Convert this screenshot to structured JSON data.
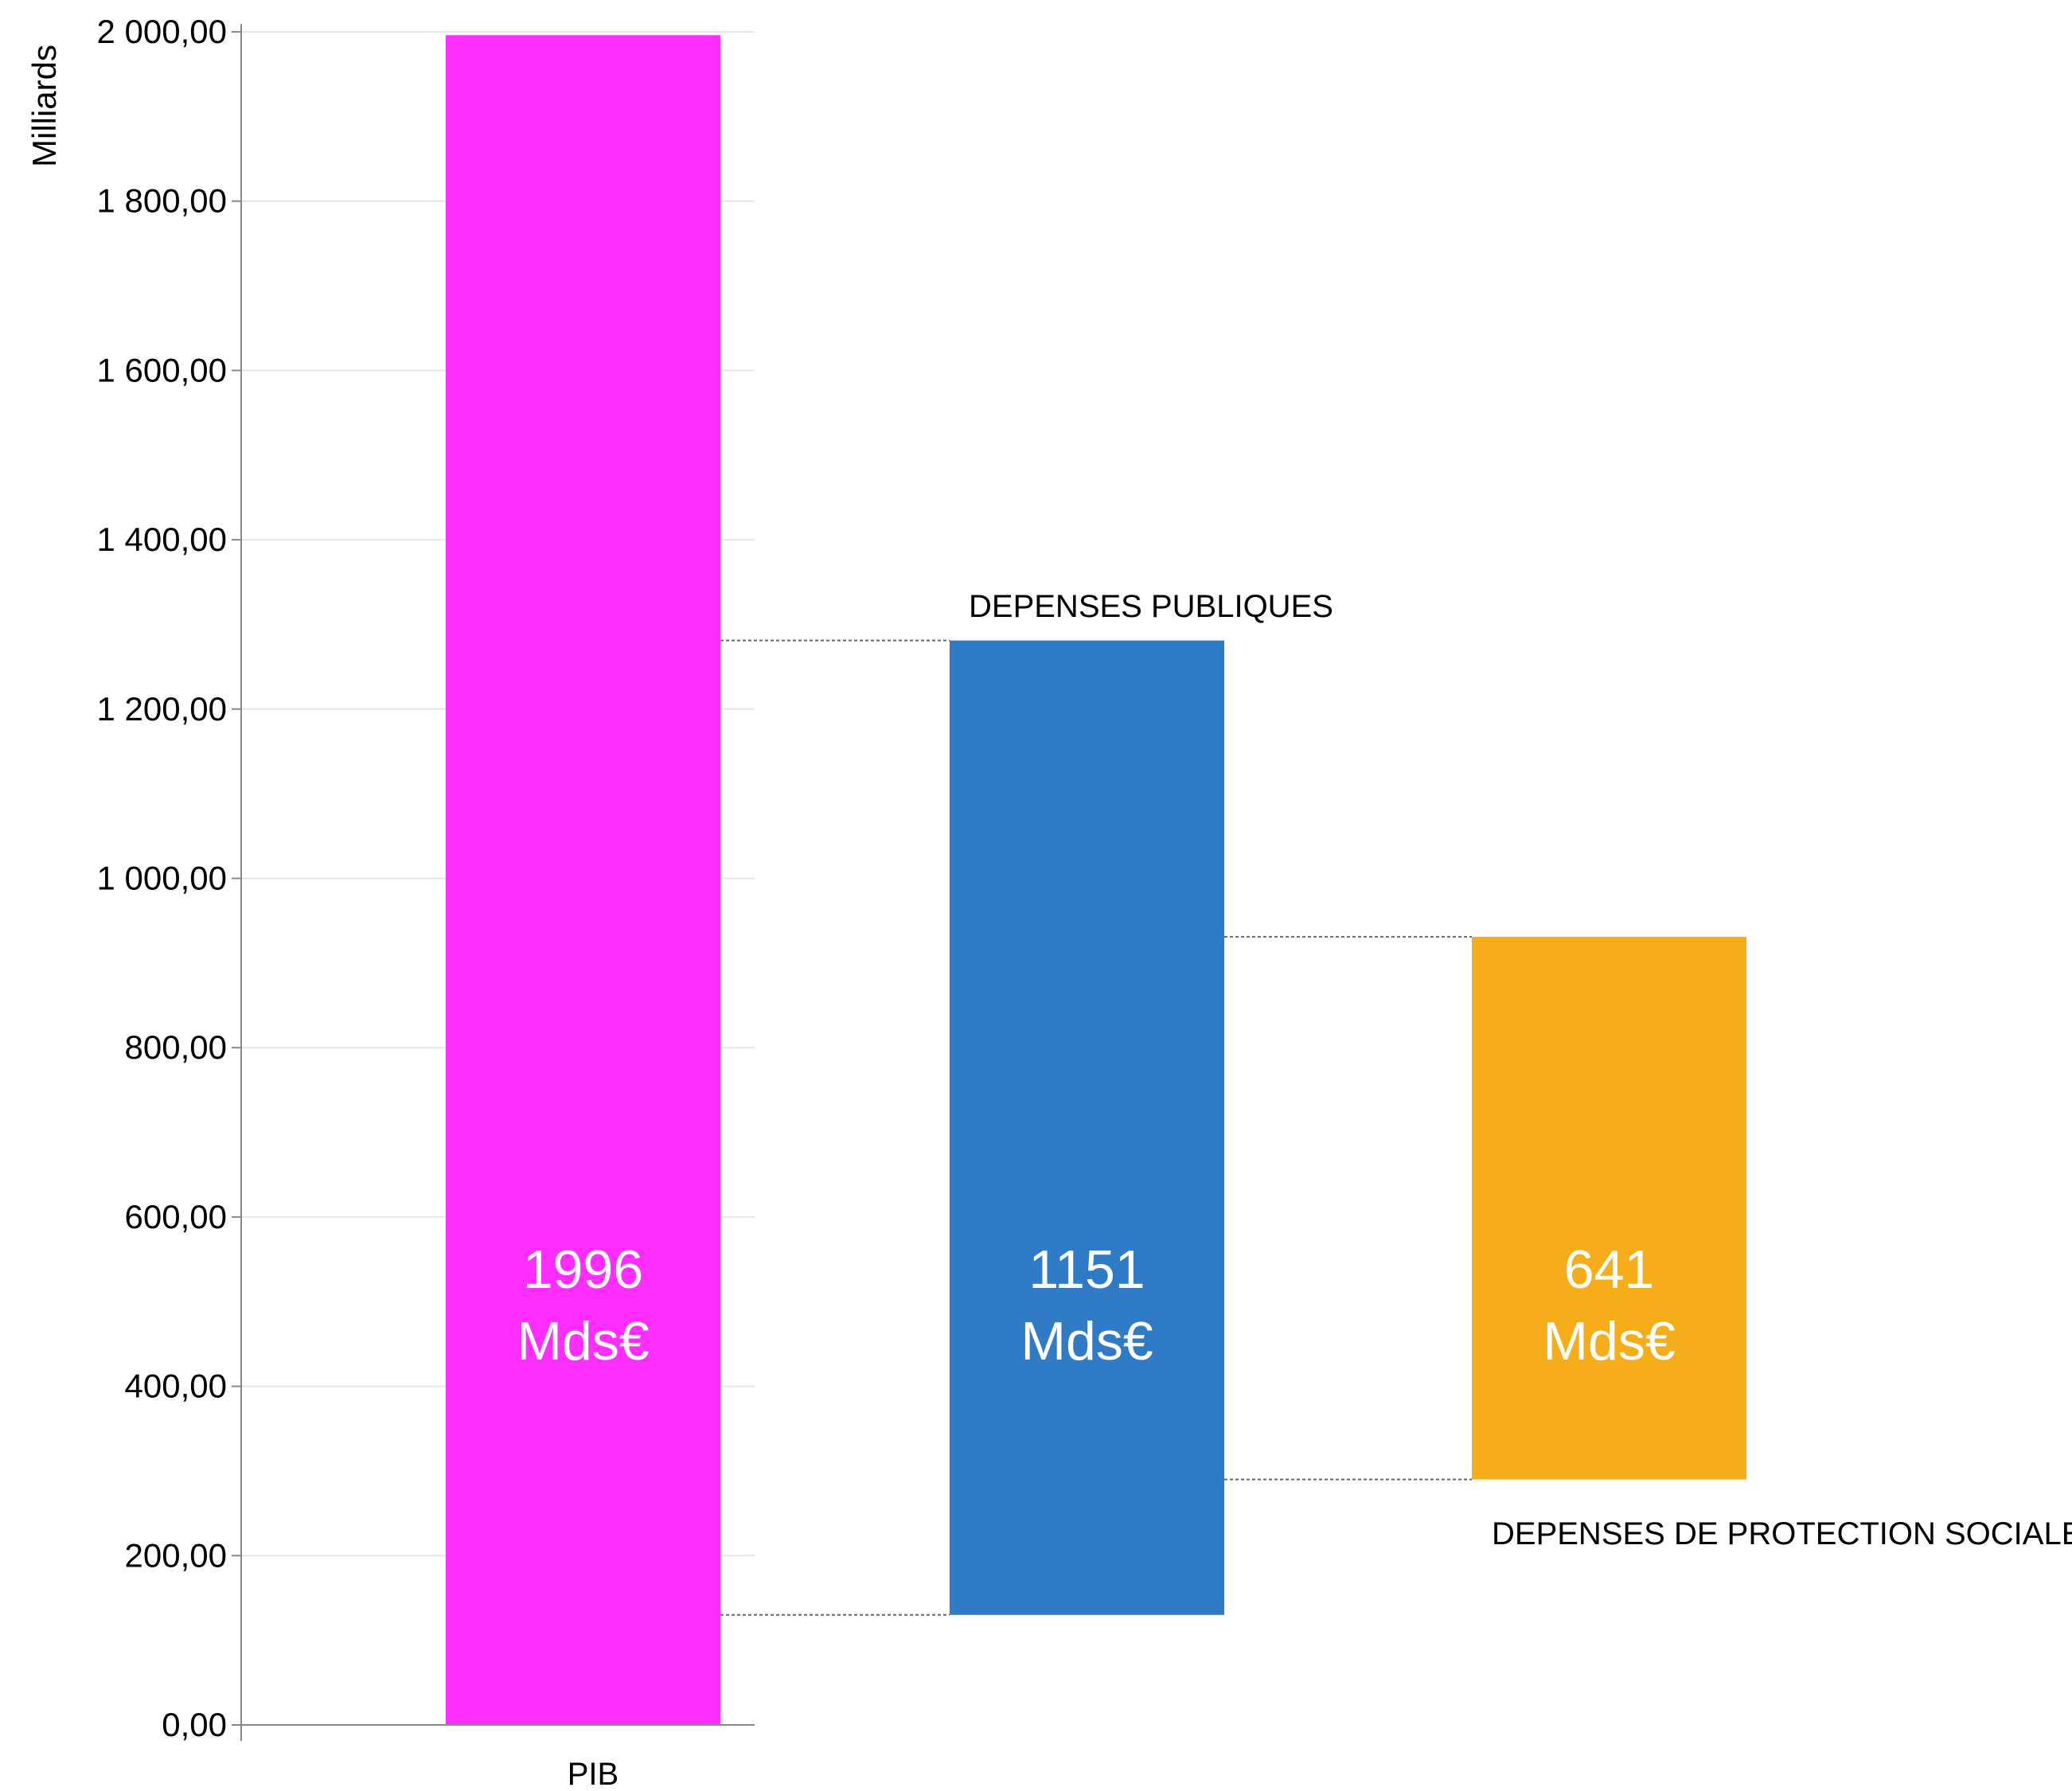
{
  "chart_data": {
    "type": "bar",
    "ylabel": "Milliards",
    "ylim": [
      0,
      2000
    ],
    "yticks": [
      "0,00",
      "200,00",
      "400,00",
      "600,00",
      "800,00",
      "1 000,00",
      "1 200,00",
      "1 400,00",
      "1 600,00",
      "1 800,00",
      "2 000,00"
    ],
    "grid": true,
    "bars": [
      {
        "category": "PIB",
        "value": 1996,
        "label_line1": "1996",
        "label_line2": "Mds€",
        "color": "#ff2dff",
        "base": 0
      },
      {
        "category": "DEPENSES PUBLIQUES",
        "value": 1151,
        "label_line1": "1151",
        "label_line2": "Mds€",
        "color": "#2f7bc6",
        "base": 130
      },
      {
        "category": "DEPENSES DE PROTECTION SOCIALE",
        "value": 641,
        "label_line1": "641",
        "label_line2": "Mds€",
        "color": "#f5ae19",
        "base": 290
      }
    ]
  }
}
